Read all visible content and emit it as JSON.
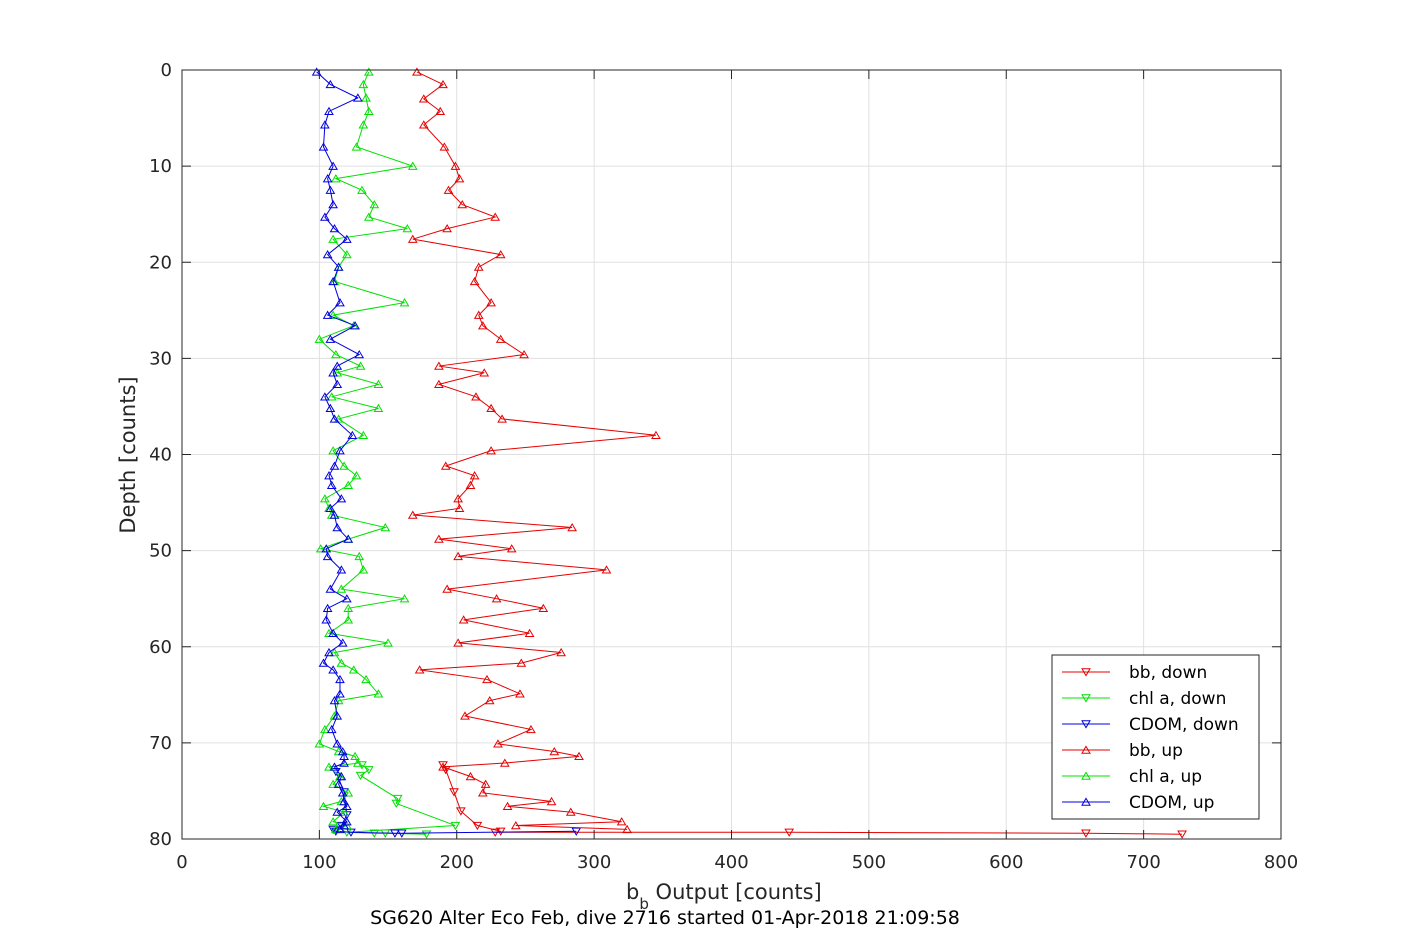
{
  "chart_data": {
    "type": "line",
    "xlabel_main": "b",
    "xlabel_sub": "b",
    "xlabel_rest": " Output [counts]",
    "ylabel": "Depth [counts]",
    "caption": "SG620 Alter Eco Feb, dive 2716 started 01-Apr-2018 21:09:58",
    "xlim": [
      0,
      800
    ],
    "ylim": [
      0,
      80
    ],
    "y_reversed": true,
    "grid": true,
    "legend_position": "bottom-right",
    "xticks": [
      0,
      100,
      200,
      300,
      400,
      500,
      600,
      700,
      800
    ],
    "yticks": [
      0,
      10,
      20,
      30,
      40,
      50,
      60,
      70,
      80
    ],
    "series": [
      {
        "name": "bb, down",
        "color": "#e60000",
        "marker": "triangle-down",
        "depth": [
          72.3,
          72.8,
          75.1,
          77.1,
          78.6,
          79.2,
          79.3,
          79.3,
          79.4,
          79.5
        ],
        "values": [
          190,
          192,
          198,
          203,
          215,
          232,
          228,
          442,
          658,
          728
        ]
      },
      {
        "name": "chl a, down",
        "color": "#00e000",
        "marker": "triangle-down",
        "depth": [
          72.3,
          72.8,
          73.4,
          75.8,
          76.3,
          78.6,
          79.3,
          79.4,
          79.4,
          79.5
        ],
        "values": [
          131,
          136,
          130,
          157,
          156,
          199,
          120,
          140,
          148,
          178
        ]
      },
      {
        "name": "CDOM, down",
        "color": "#0000e0",
        "marker": "triangle-down",
        "depth": [
          73.0,
          75.1,
          77.5,
          78.6,
          79.0,
          79.2,
          79.3,
          79.4,
          79.4,
          79.2
        ],
        "values": [
          112,
          118,
          120,
          116,
          110,
          112,
          123,
          155,
          160,
          287
        ]
      },
      {
        "name": "bb, up",
        "color": "#e60000",
        "marker": "triangle-up",
        "depth": [
          0.2,
          1.5,
          3.0,
          4.3,
          5.7,
          8.0,
          10.0,
          11.3,
          12.5,
          14.0,
          15.3,
          16.5,
          17.6,
          19.2,
          20.5,
          22.0,
          24.2,
          25.5,
          26.6,
          28.0,
          29.6,
          30.8,
          31.5,
          32.7,
          34.0,
          35.2,
          36.3,
          38.0,
          39.6,
          41.2,
          42.2,
          43.2,
          44.6,
          45.6,
          46.3,
          47.6,
          48.8,
          49.8,
          50.6,
          52.0,
          54.0,
          55.0,
          56.0,
          57.2,
          58.6,
          59.6,
          60.6,
          61.7,
          62.4,
          63.4,
          64.9,
          65.6,
          67.2,
          68.6,
          70.1,
          70.9,
          71.4,
          72.1,
          72.5,
          73.5,
          74.3,
          75.2,
          76.1,
          76.6,
          77.2,
          78.2,
          78.6,
          79.0
        ],
        "values": [
          171,
          190,
          176,
          188,
          176,
          191,
          199,
          202,
          194,
          204,
          228,
          193,
          168,
          232,
          216,
          213,
          225,
          216,
          219,
          232,
          249,
          187,
          220,
          187,
          214,
          225,
          233,
          345,
          225,
          192,
          213,
          210,
          201,
          202,
          168,
          284,
          187,
          240,
          201,
          309,
          193,
          229,
          263,
          205,
          253,
          201,
          276,
          247,
          173,
          222,
          246,
          224,
          206,
          254,
          230,
          271,
          289,
          235,
          190,
          210,
          221,
          219,
          269,
          237,
          283,
          320,
          243,
          324
        ]
      },
      {
        "name": "chl a, up",
        "color": "#00e000",
        "marker": "triangle-up",
        "depth": [
          0.2,
          1.5,
          2.9,
          4.3,
          5.7,
          8.0,
          10.0,
          11.3,
          12.5,
          14.0,
          15.3,
          16.5,
          17.6,
          19.2,
          20.5,
          22.0,
          24.2,
          25.5,
          26.6,
          28.0,
          29.6,
          30.8,
          31.5,
          32.7,
          34.0,
          35.2,
          36.3,
          38.0,
          39.6,
          41.2,
          42.2,
          43.2,
          44.6,
          45.6,
          46.3,
          47.6,
          48.8,
          49.8,
          50.6,
          52.0,
          54.0,
          55.0,
          56.0,
          57.2,
          58.6,
          59.6,
          60.6,
          61.7,
          62.4,
          63.4,
          64.9,
          65.6,
          67.2,
          68.6,
          70.1,
          70.9,
          71.4,
          72.1,
          72.5,
          73.5,
          74.3,
          75.2,
          76.1,
          76.6,
          77.2,
          78.2,
          78.6,
          79.0
        ],
        "values": [
          136,
          132,
          134,
          136,
          132,
          127,
          168,
          112,
          131,
          140,
          136,
          164,
          110,
          120,
          114,
          111,
          162,
          110,
          125,
          100,
          112,
          130,
          113,
          143,
          109,
          143,
          114,
          132,
          110,
          118,
          127,
          121,
          104,
          107,
          109,
          148,
          121,
          101,
          129,
          132,
          116,
          162,
          121,
          121,
          107,
          150,
          111,
          116,
          125,
          134,
          143,
          114,
          111,
          104,
          100,
          114,
          126,
          128,
          107,
          115,
          110,
          121,
          116,
          103,
          118,
          110,
          120,
          112
        ]
      },
      {
        "name": "CDOM, up",
        "color": "#0000e0",
        "marker": "triangle-up",
        "depth": [
          0.2,
          1.5,
          2.9,
          4.3,
          5.7,
          8.0,
          10.0,
          11.3,
          12.5,
          14.0,
          15.3,
          16.5,
          17.6,
          19.2,
          20.5,
          22.0,
          24.2,
          25.5,
          26.6,
          28.0,
          29.6,
          30.8,
          31.5,
          32.7,
          34.0,
          35.2,
          36.3,
          38.0,
          39.6,
          41.2,
          42.2,
          43.2,
          44.6,
          45.6,
          46.3,
          47.6,
          48.8,
          49.8,
          50.6,
          52.0,
          54.0,
          55.0,
          56.0,
          57.2,
          58.6,
          59.6,
          60.6,
          61.7,
          62.4,
          63.4,
          64.9,
          65.6,
          67.2,
          68.6,
          70.1,
          70.9,
          71.4,
          72.1,
          72.5,
          73.5,
          74.3,
          75.2,
          76.1,
          76.6,
          77.2,
          78.2,
          78.6,
          79.0
        ],
        "values": [
          98,
          108,
          128,
          107,
          104,
          103,
          110,
          106,
          108,
          110,
          104,
          111,
          120,
          106,
          114,
          110,
          115,
          106,
          126,
          108,
          129,
          113,
          110,
          113,
          104,
          108,
          111,
          124,
          115,
          111,
          107,
          109,
          116,
          108,
          111,
          113,
          121,
          105,
          106,
          116,
          108,
          120,
          106,
          105,
          110,
          117,
          107,
          103,
          110,
          115,
          115,
          111,
          113,
          109,
          113,
          117,
          118,
          118,
          111,
          116,
          114,
          117,
          118,
          120,
          113,
          120,
          118,
          115
        ]
      }
    ]
  }
}
